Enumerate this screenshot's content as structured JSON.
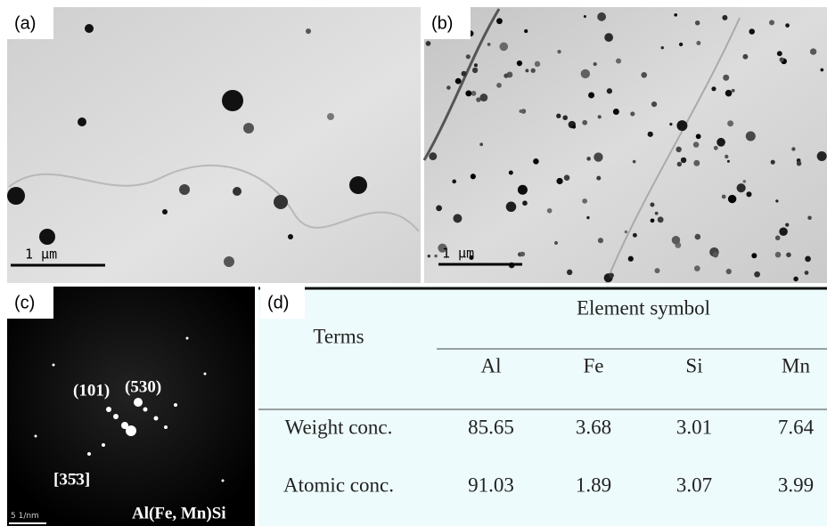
{
  "panels": [
    {
      "label": "(a)",
      "scale_bar": "1 μm"
    },
    {
      "label": "(b)",
      "scale_bar": "1 μm"
    },
    {
      "label": "(c)",
      "annotations": [
        "(101)",
        "(530)",
        "[35̄3]",
        "Al(Fe, Mn)Si"
      ],
      "scale_bar": "5 1/nm"
    }
  ],
  "table": {
    "label": "(d)",
    "header": {
      "terms": "Terms",
      "group": "Element symbol",
      "columns": [
        "Al",
        "Fe",
        "Si",
        "Mn"
      ]
    },
    "rows": [
      [
        "Weight conc.",
        "85.65",
        "3.68",
        "3.01",
        "7.64"
      ],
      [
        "Atomic conc.",
        "91.03",
        "1.89",
        "3.07",
        "3.99"
      ]
    ]
  }
}
